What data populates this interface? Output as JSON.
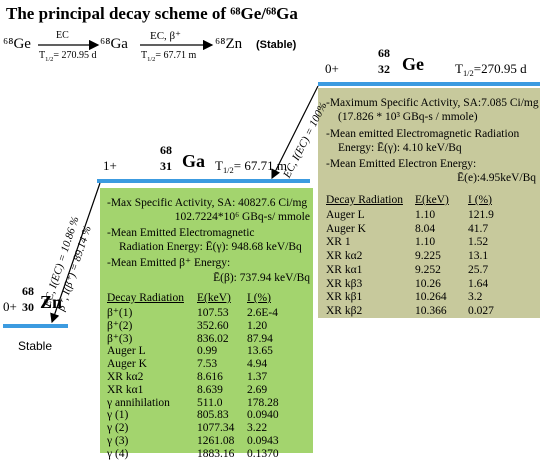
{
  "title": "The principal decay scheme of ⁶⁸Ge/⁶⁸Ga",
  "chain": {
    "parent": "⁶⁸Ge",
    "step1": {
      "mode": "EC",
      "half_life": {
        "symbol": "T",
        "sub": "1/2",
        "value": "= 270.95 d"
      }
    },
    "daughter": "⁶⁸Ga",
    "step2": {
      "mode": "EC, β⁺",
      "half_life": {
        "symbol": "T",
        "sub": "1/2",
        "value": "= 67.71 m"
      }
    },
    "product": "⁶⁸Zn",
    "product_note": "(Stable)"
  },
  "levels": [
    {
      "spin": "0+",
      "mass": "68",
      "z": "32",
      "symbol": "Ge",
      "half_life": {
        "symbol": "T",
        "sub": "1/2",
        "value": "=270.95 d"
      }
    },
    {
      "spin": "1+",
      "mass": "68",
      "z": "31",
      "symbol": "Ga",
      "half_life": {
        "symbol": "T",
        "sub": "1/2",
        "value": "= 67.71 m"
      }
    },
    {
      "spin": "0+",
      "mass": "68",
      "z": "30",
      "symbol": "Zn",
      "state": "Stable"
    }
  ],
  "transitions": [
    {
      "labels": [
        "EC, I(EC) = 100%"
      ]
    },
    {
      "labels": [
        "EC, I(EC) = 10.86 %",
        "β⁺, I(β⁺) = 89.14 %"
      ]
    }
  ],
  "boxes": [
    {
      "notes": [
        "-Maximum Specific Activity, SA:7.085 Ci/mg",
        "(17.826 * 10³ GBq-s / mmole)",
        "-Mean emitted Electromagnetic Radiation",
        "Energy:   Ē(γ): 4.10 keV/Bq",
        "-Mean Emitted Electron Energy:",
        "Ē(e):4.95keV/Bq"
      ],
      "table": {
        "header": [
          "Decay Radiation",
          "E(keV)",
          "I (%)"
        ],
        "rows": [
          [
            "Auger L",
            "1.10",
            "121.9"
          ],
          [
            "Auger K",
            "8.04",
            "41.7"
          ],
          [
            "XR 1",
            "1.10",
            "1.52"
          ],
          [
            "XR kα2",
            "9.225",
            "13.1"
          ],
          [
            "XR kα1",
            "9.252",
            "25.7"
          ],
          [
            "XR kβ3",
            "10.26",
            "1.64"
          ],
          [
            "XR kβ1",
            "10.264",
            "3.2"
          ],
          [
            "XR kβ2",
            "10.366",
            "0.027"
          ]
        ]
      }
    },
    {
      "notes": [
        "-Max Specific Activity, SA: 40827.6 Ci/mg",
        "102.7224*10⁶ GBq-s/ mmole",
        "-Mean Emitted Electromagnetic",
        "Radiation Energy:   Ē(γ): 948.68 keV/Bq",
        "-Mean Emitted β⁺ Energy:",
        "Ē(β): 737.94 keV/Bq"
      ],
      "table": {
        "header": [
          "Decay Radiation",
          "E(keV)",
          "I (%)"
        ],
        "rows": [
          [
            "β⁺(1)",
            "107.53",
            "2.6E-4"
          ],
          [
            "β⁺(2)",
            "352.60",
            "1.20"
          ],
          [
            "β⁺(3)",
            "836.02",
            "87.94"
          ],
          [
            "Auger L",
            "0.99",
            "13.65"
          ],
          [
            "Auger K",
            "7.53",
            "4.94"
          ],
          [
            "XR kα2",
            "8.616",
            "1.37"
          ],
          [
            "XR kα1",
            "8.639",
            "2.69"
          ],
          [
            "γ  annihilation",
            "511.0",
            "178.28"
          ],
          [
            "γ (1)",
            "805.83",
            "0.0940"
          ],
          [
            "γ (2)",
            "1077.34",
            "3.22"
          ],
          [
            "γ (3)",
            "1261.08",
            "0.0943"
          ],
          [
            "γ (4)",
            "1883.16",
            "0.1370"
          ]
        ]
      }
    }
  ]
}
